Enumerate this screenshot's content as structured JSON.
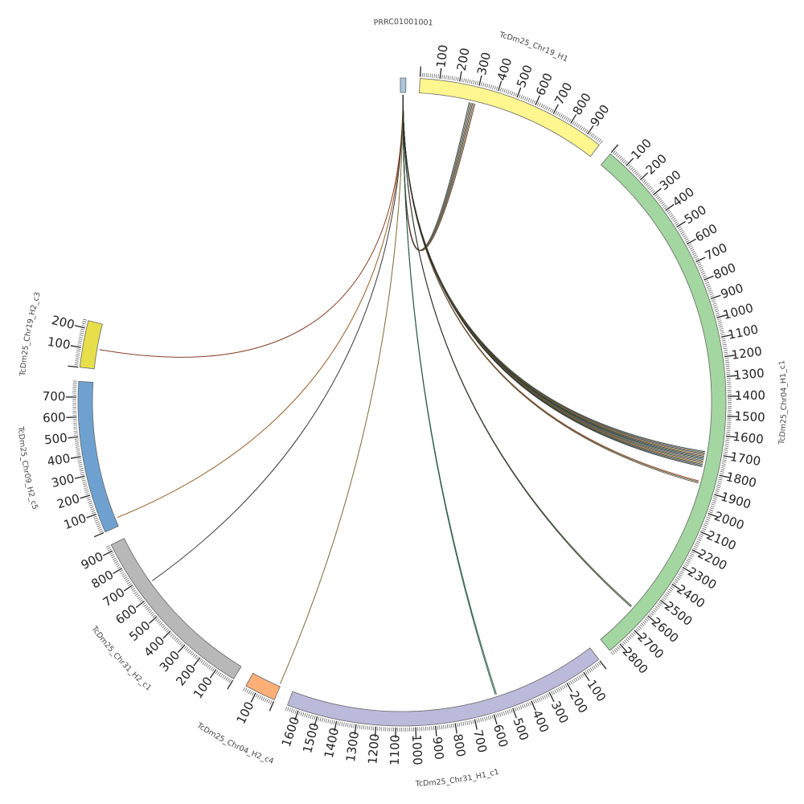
{
  "chart_data": {
    "type": "chord",
    "units": "ticks every 100, minor ticks every 10",
    "segments": [
      {
        "name": "PRRC01001001",
        "length": 5,
        "color": "#a9c6dd"
      },
      {
        "name": "TcDm25_Chr19_H1",
        "length": 980,
        "color": "#fef68f"
      },
      {
        "name": "TcDm25_Chr04_H1_c1",
        "length": 2860,
        "color": "#a3d6a0"
      },
      {
        "name": "TcDm25_Chr31_H1_c1",
        "length": 1660,
        "color": "#bcbada"
      },
      {
        "name": "TcDm25_Chr04_H2_c4",
        "length": 160,
        "color": "#fcaf77"
      },
      {
        "name": "TcDm25_Chr31_H2_c1",
        "length": 930,
        "color": "#b8b8b8"
      },
      {
        "name": "TcDm25_Chr09_H2_c5",
        "length": 780,
        "color": "#6ea1d0"
      },
      {
        "name": "TcDm25_Chr19_H2_c3",
        "length": 240,
        "color": "#e6df4b"
      }
    ],
    "segment_label_overrides": {
      "PRRC01001001": "PRRC01001001",
      "TcDm25_Chr19_H2_c3": "TcDm25_Chr19_H2_c3"
    },
    "links": [
      {
        "from": "PRRC01001001",
        "from_pos": 2.5,
        "to": "TcDm25_Chr19_H1",
        "to_pos": 285,
        "color": "#3a3a3a",
        "count": 6
      },
      {
        "from": "PRRC01001001",
        "from_pos": 2.5,
        "to": "TcDm25_Chr19_H2_c3",
        "to_pos": 105,
        "color": "#7a2a10",
        "count": 1
      },
      {
        "from": "PRRC01001001",
        "from_pos": 2.5,
        "to": "TcDm25_Chr09_H2_c5",
        "to_pos": 45,
        "color": "#8a4a10",
        "count": 1
      },
      {
        "from": "PRRC01001001",
        "from_pos": 2.5,
        "to": "TcDm25_Chr31_H2_c1",
        "to_pos": 660,
        "color": "#222222",
        "count": 1
      },
      {
        "from": "PRRC01001001",
        "from_pos": 2.5,
        "to": "TcDm25_Chr04_H2_c4",
        "to_pos": 5,
        "color": "#6a5a20",
        "count": 1
      },
      {
        "from": "PRRC01001001",
        "from_pos": 2.5,
        "to": "TcDm25_Chr31_H1_c1",
        "to_pos": 560,
        "color": "#1f5a3a",
        "count": 2
      },
      {
        "from": "PRRC01001001",
        "from_pos": 2.5,
        "to": "TcDm25_Chr04_H1_c1",
        "to_pos": 2620,
        "color": "#3d5a30",
        "count": 2
      },
      {
        "from": "PRRC01001001",
        "from_pos": 2.5,
        "to": "TcDm25_Chr04_H1_c1",
        "to_pos": 1860,
        "color": "#a03a10",
        "count": 3
      },
      {
        "from": "PRRC01001001",
        "from_pos": 2.5,
        "to": "TcDm25_Chr04_H1_c1",
        "to_pos": 1735,
        "color": "#1f3f3f",
        "count": 14
      }
    ]
  },
  "link_palette": [
    "#222222",
    "#3b5b4a",
    "#6a4a2a",
    "#2a3a5a",
    "#8a6a10",
    "#4a2a2a",
    "#1f4f3f"
  ]
}
